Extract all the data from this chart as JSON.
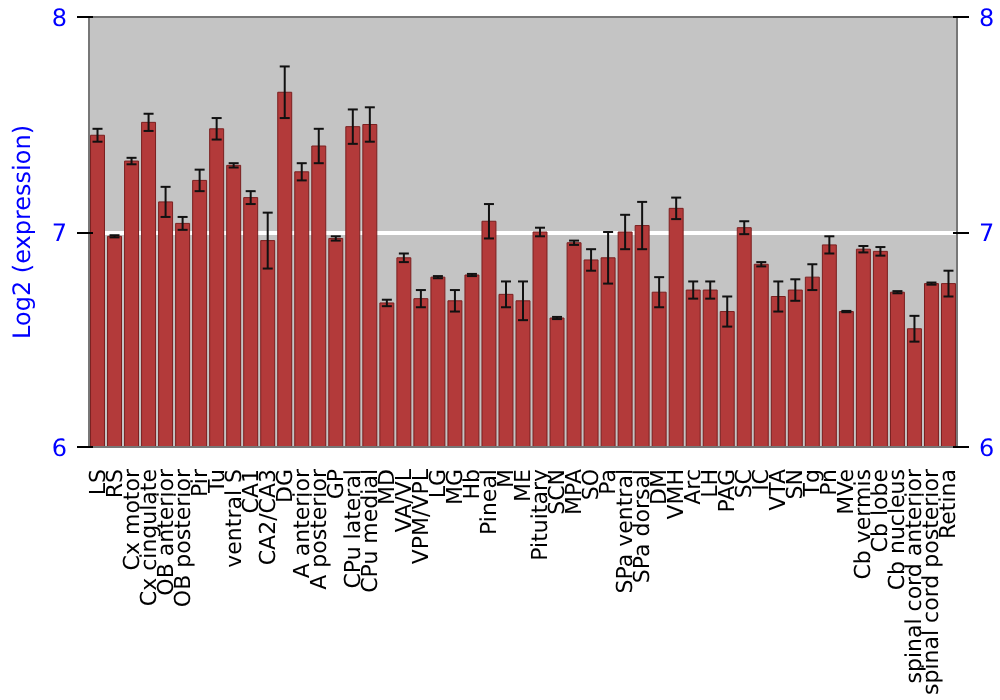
{
  "chart_data": {
    "type": "bar",
    "ylabel": "Log2 (expression)",
    "categories": [
      "LS",
      "RS",
      "Cx motor",
      "Cx cingulate",
      "OB anterior",
      "OB posterior",
      "Pir",
      "Tu",
      "ventral S",
      "CA1",
      "CA2/CA3",
      "DG",
      "A anterior",
      "A posterior",
      "GP",
      "CPu lateral",
      "CPu medial",
      "MD",
      "VA/VL",
      "VPM/VPL",
      "LG",
      "MG",
      "Hb",
      "Pineal",
      "M",
      "ME",
      "Pituitary",
      "SCN",
      "MPA",
      "SO",
      "Pa",
      "SPa ventral",
      "SPa dorsal",
      "DM",
      "VMH",
      "Arc",
      "LH",
      "PAG",
      "SC",
      "IC",
      "VTA",
      "SN",
      "Tg",
      "Pn",
      "MVe",
      "Cb vermis",
      "Cb lobe",
      "Cb nucleus",
      "spinal cord anterior",
      "spinal cord posterior",
      "Retina"
    ],
    "values": [
      7.45,
      6.98,
      7.33,
      7.51,
      7.14,
      7.04,
      7.24,
      7.48,
      7.31,
      7.16,
      6.96,
      7.65,
      7.28,
      7.4,
      6.97,
      7.49,
      7.5,
      6.67,
      6.88,
      6.69,
      6.79,
      6.68,
      6.8,
      7.05,
      6.71,
      6.68,
      7.0,
      6.6,
      6.95,
      6.87,
      6.88,
      7.0,
      7.03,
      6.72,
      7.11,
      6.73,
      6.73,
      6.63,
      7.02,
      6.85,
      6.7,
      6.73,
      6.79,
      6.94,
      6.63,
      6.92,
      6.91,
      6.72,
      6.55,
      6.76,
      6.76
    ],
    "errors": [
      0.03,
      0.005,
      0.015,
      0.04,
      0.07,
      0.03,
      0.05,
      0.05,
      0.01,
      0.03,
      0.13,
      0.12,
      0.04,
      0.08,
      0.01,
      0.08,
      0.08,
      0.015,
      0.02,
      0.04,
      0.005,
      0.05,
      0.005,
      0.08,
      0.06,
      0.09,
      0.02,
      0.005,
      0.01,
      0.05,
      0.12,
      0.08,
      0.11,
      0.07,
      0.05,
      0.04,
      0.04,
      0.07,
      0.03,
      0.01,
      0.07,
      0.05,
      0.06,
      0.04,
      0.003,
      0.015,
      0.02,
      0.005,
      0.06,
      0.005,
      0.06
    ],
    "color": "#b33a3a",
    "ylim": [
      6,
      8
    ],
    "yticks": [
      6,
      7,
      8
    ],
    "y2lim": [
      6,
      8
    ],
    "y2ticks": [
      6,
      7,
      8
    ],
    "grid": "y"
  }
}
